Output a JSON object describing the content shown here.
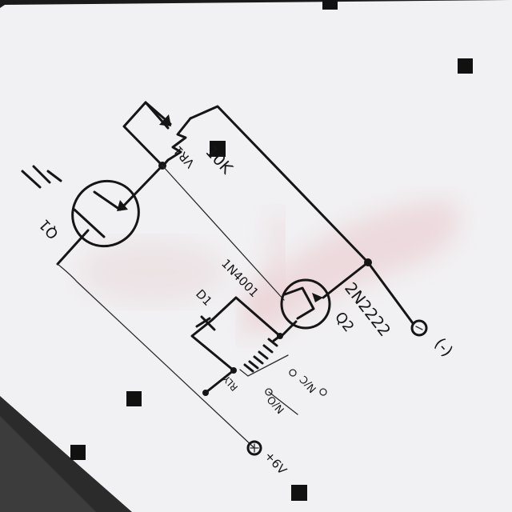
{
  "labels": {
    "pot_value": "10K",
    "pot_name": "VR1",
    "phototransistor_name": "Q1",
    "diode_part": "1N4001",
    "diode_name": "D1",
    "transistor_part": "2N2222",
    "transistor_name": "Q2",
    "relay_name": "RLY",
    "terminal_neg": "(-)",
    "terminal_pos": "+6V",
    "contact_no": "N/O",
    "contact_nc": "N/C"
  },
  "colors": {
    "paper": "#f1f0f2",
    "ink": "#151515",
    "stain": "#e9c8cc"
  }
}
